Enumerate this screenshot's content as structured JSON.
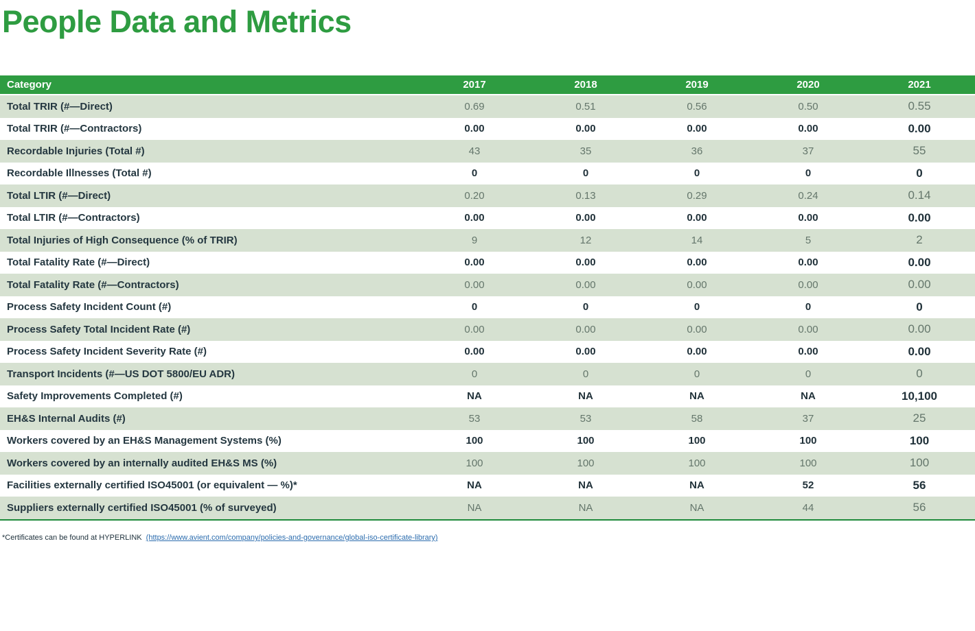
{
  "title": "People Data and Metrics",
  "colors": {
    "brand_green": "#2E9C41",
    "row_green": "#D6E1D1",
    "dark_text": "#243740",
    "muted_value_text": "#64766B",
    "bottom_border_green": "#1F8A3B",
    "link_blue": "#2B6CAE"
  },
  "table": {
    "columns": [
      "Category",
      "2017",
      "2018",
      "2019",
      "2020",
      "2021"
    ],
    "rows": [
      {
        "category": "Total TRIR (#—Direct)",
        "values": [
          "0.69",
          "0.51",
          "0.56",
          "0.50",
          "0.55"
        ]
      },
      {
        "category": "Total TRIR (#—Contractors)",
        "values": [
          "0.00",
          "0.00",
          "0.00",
          "0.00",
          "0.00"
        ]
      },
      {
        "category": "Recordable Injuries (Total #)",
        "values": [
          "43",
          "35",
          "36",
          "37",
          "55"
        ]
      },
      {
        "category": "Recordable Illnesses (Total #)",
        "values": [
          "0",
          "0",
          "0",
          "0",
          "0"
        ]
      },
      {
        "category": "Total LTIR (#—Direct)",
        "values": [
          "0.20",
          "0.13",
          "0.29",
          "0.24",
          "0.14"
        ]
      },
      {
        "category": "Total LTIR (#—Contractors)",
        "values": [
          "0.00",
          "0.00",
          "0.00",
          "0.00",
          "0.00"
        ]
      },
      {
        "category": "Total Injuries of High Consequence (% of TRIR)",
        "values": [
          "9",
          "12",
          "14",
          "5",
          "2"
        ]
      },
      {
        "category": "Total Fatality Rate (#—Direct)",
        "values": [
          "0.00",
          "0.00",
          "0.00",
          "0.00",
          "0.00"
        ]
      },
      {
        "category": "Total Fatality Rate (#—Contractors)",
        "values": [
          "0.00",
          "0.00",
          "0.00",
          "0.00",
          "0.00"
        ]
      },
      {
        "category": "Process Safety Incident Count (#)",
        "values": [
          "0",
          "0",
          "0",
          "0",
          "0"
        ]
      },
      {
        "category": "Process Safety Total Incident Rate (#)",
        "values": [
          "0.00",
          "0.00",
          "0.00",
          "0.00",
          "0.00"
        ]
      },
      {
        "category": "Process Safety Incident Severity Rate (#)",
        "values": [
          "0.00",
          "0.00",
          "0.00",
          "0.00",
          "0.00"
        ]
      },
      {
        "category": "Transport Incidents (#—US DOT 5800/EU ADR)",
        "values": [
          "0",
          "0",
          "0",
          "0",
          "0"
        ]
      },
      {
        "category": "Safety Improvements Completed (#)",
        "values": [
          "NA",
          "NA",
          "NA",
          "NA",
          "10,100"
        ]
      },
      {
        "category": "EH&S Internal Audits (#)",
        "values": [
          "53",
          "53",
          "58",
          "37",
          "25"
        ]
      },
      {
        "category": "Workers covered by an EH&S Management Systems (%)",
        "values": [
          "100",
          "100",
          "100",
          "100",
          "100"
        ]
      },
      {
        "category": "Workers covered by an internally audited EH&S MS (%)",
        "values": [
          "100",
          "100",
          "100",
          "100",
          "100"
        ]
      },
      {
        "category": "Facilities externally certified ISO45001 (or equivalent — %)*",
        "values": [
          "NA",
          "NA",
          "NA",
          "52",
          "56"
        ]
      },
      {
        "category": "Suppliers externally certified ISO45001 (% of surveyed)",
        "values": [
          "NA",
          "NA",
          "NA",
          "44",
          "56"
        ]
      }
    ]
  },
  "footnote": {
    "prefix": "*Certificates can be found at HYPERLINK ",
    "link": "(https://www.avient.com/company/policies-and-governance/global-iso-certificate-library)"
  }
}
